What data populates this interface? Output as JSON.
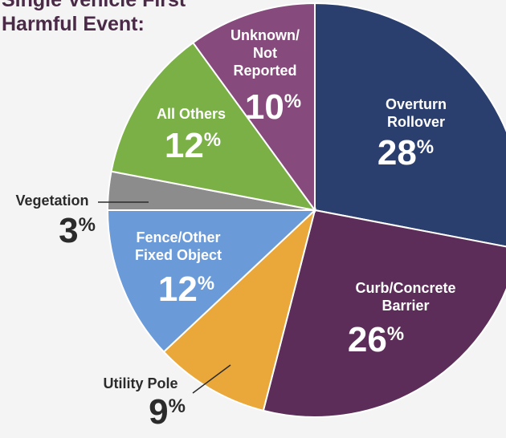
{
  "chart_data": {
    "type": "pie",
    "title": "Single Vehicle First\nHarmful Event:",
    "categories": [
      "Overturn\nRollover",
      "Curb/Concrete\nBarrier",
      "Utility Pole",
      "Fence/Other\nFixed Object",
      "Vegetation",
      "All Others",
      "Unknown/\nNot\nReported"
    ],
    "values": [
      28,
      26,
      9,
      12,
      3,
      12,
      10
    ],
    "value_labels": [
      "28%",
      "26%",
      "9%",
      "12%",
      "3%",
      "12%",
      "10%"
    ],
    "colors": [
      "#2b3f6e",
      "#5c2d58",
      "#eaa83a",
      "#6a9bd8",
      "#8c8c8c",
      "#7bb046",
      "#874a7c"
    ]
  }
}
